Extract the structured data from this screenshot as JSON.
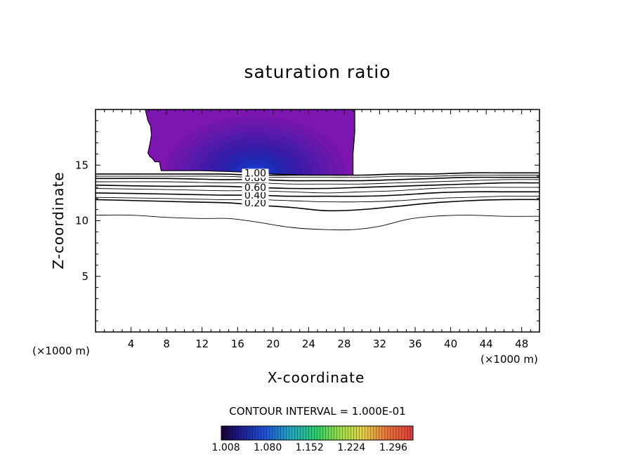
{
  "chart_data": {
    "type": "contour",
    "title": "saturation ratio",
    "xlabel": "X-coordinate",
    "ylabel": "Z-coordinate",
    "x_unit_label": "(×1000 m)",
    "xlim": [
      0,
      50
    ],
    "ylim": [
      0,
      20
    ],
    "x_ticks": [
      4,
      8,
      12,
      16,
      20,
      24,
      28,
      32,
      36,
      40,
      44,
      48
    ],
    "y_ticks": [
      5,
      10,
      15
    ],
    "contour_interval_text": "CONTOUR INTERVAL = 1.000E-01",
    "colorbar": {
      "tick_labels": [
        "1.008",
        "1.080",
        "1.152",
        "1.224",
        "1.296"
      ],
      "range": [
        1.0,
        1.33
      ]
    },
    "contour_labels": [
      "1.00",
      "0.80",
      "0.60",
      "0.40",
      "0.20"
    ],
    "contours": [
      {
        "level": 0.2,
        "label": "0.20",
        "x": [
          0,
          5,
          10,
          15,
          18,
          22,
          26,
          30,
          34,
          38,
          42,
          46,
          50
        ],
        "y": [
          11.9,
          11.8,
          11.7,
          11.6,
          11.4,
          11.2,
          10.9,
          11.0,
          11.3,
          11.6,
          11.8,
          11.9,
          11.9
        ]
      },
      {
        "level": 0.1,
        "x": [
          0,
          4,
          8,
          12,
          15,
          18,
          22,
          26,
          29,
          32,
          35,
          38,
          42,
          46,
          50
        ],
        "y": [
          10.5,
          10.5,
          10.3,
          10.2,
          10.2,
          9.9,
          9.4,
          9.2,
          9.2,
          9.5,
          10.1,
          10.4,
          10.5,
          10.4,
          10.4
        ]
      },
      {
        "level": 0.3,
        "x": [
          0,
          8,
          14,
          18,
          22,
          26,
          30,
          34,
          38,
          42,
          46,
          50
        ],
        "y": [
          12.1,
          12.0,
          11.9,
          11.9,
          11.8,
          11.7,
          11.7,
          11.8,
          12.0,
          12.1,
          12.2,
          12.2
        ]
      },
      {
        "level": 0.4,
        "label": "0.40",
        "x": [
          0,
          8,
          14,
          18,
          22,
          26,
          30,
          34,
          38,
          42,
          46,
          50
        ],
        "y": [
          12.5,
          12.4,
          12.3,
          12.3,
          12.2,
          12.2,
          12.2,
          12.3,
          12.5,
          12.6,
          12.6,
          12.6
        ]
      },
      {
        "level": 0.5,
        "x": [
          0,
          8,
          14,
          18,
          22,
          26,
          30,
          34,
          38,
          42,
          46,
          50
        ],
        "y": [
          12.9,
          12.8,
          12.7,
          12.7,
          12.6,
          12.5,
          12.6,
          12.7,
          12.9,
          13.0,
          13.0,
          13.0
        ]
      },
      {
        "level": 0.6,
        "label": "0.60",
        "x": [
          0,
          8,
          14,
          18,
          22,
          26,
          30,
          34,
          38,
          42,
          46,
          50
        ],
        "y": [
          13.2,
          13.1,
          13.1,
          13.0,
          12.9,
          12.9,
          13.0,
          13.1,
          13.2,
          13.3,
          13.4,
          13.4
        ]
      },
      {
        "level": 0.7,
        "x": [
          0,
          8,
          14,
          18,
          22,
          26,
          30,
          34,
          38,
          42,
          46,
          50
        ],
        "y": [
          13.5,
          13.5,
          13.4,
          13.4,
          13.3,
          13.3,
          13.3,
          13.4,
          13.5,
          13.6,
          13.7,
          13.7
        ]
      },
      {
        "level": 0.8,
        "label": "0.80",
        "x": [
          0,
          8,
          14,
          18,
          22,
          26,
          30,
          34,
          38,
          42,
          46,
          50
        ],
        "y": [
          13.8,
          13.8,
          13.7,
          13.7,
          13.6,
          13.6,
          13.6,
          13.7,
          13.8,
          13.9,
          13.9,
          13.9
        ]
      },
      {
        "level": 0.9,
        "x": [
          0,
          8,
          14,
          18,
          22,
          26,
          30,
          34,
          38,
          42,
          46,
          50
        ],
        "y": [
          14.0,
          14.0,
          14.0,
          13.9,
          13.9,
          13.9,
          13.9,
          14.0,
          14.0,
          14.1,
          14.1,
          14.1
        ]
      },
      {
        "level": 1.0,
        "label": "1.00",
        "x": [
          0,
          8,
          14,
          18,
          22,
          26,
          30,
          34,
          38,
          42,
          46,
          50
        ],
        "y": [
          14.2,
          14.2,
          14.2,
          14.1,
          14.1,
          14.1,
          14.1,
          14.2,
          14.2,
          14.3,
          14.3,
          14.3
        ]
      }
    ],
    "supersaturated_region": {
      "boundary_x": [
        5.6,
        5.9,
        6.2,
        6.3,
        6.1,
        5.9,
        6.1,
        6.4,
        6.7,
        7.2,
        7.4,
        12,
        16,
        20,
        24,
        29.0,
        29.0,
        29.2,
        29.2
      ],
      "boundary_y": [
        20,
        19.0,
        18.5,
        17.7,
        16.8,
        16.1,
        15.8,
        15.6,
        15.3,
        15.3,
        14.5,
        14.5,
        14.4,
        14.2,
        14.1,
        14.1,
        16.0,
        18.0,
        20
      ],
      "max_value": 1.1,
      "max_center_x": 18,
      "max_center_z": 14.2
    }
  }
}
